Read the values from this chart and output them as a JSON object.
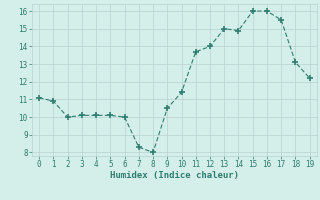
{
  "x": [
    0,
    1,
    2,
    3,
    4,
    5,
    6,
    7,
    8,
    9,
    10,
    11,
    12,
    13,
    14,
    15,
    16,
    17,
    18,
    19
  ],
  "y": [
    11.1,
    10.9,
    10.0,
    10.1,
    10.1,
    10.1,
    10.0,
    8.3,
    8.0,
    10.5,
    11.4,
    13.7,
    14.0,
    15.0,
    14.9,
    16.0,
    16.0,
    15.5,
    13.1,
    12.2
  ],
  "xlabel": "Humidex (Indice chaleur)",
  "ylim": [
    8,
    16
  ],
  "xlim": [
    -0.5,
    19.5
  ],
  "yticks": [
    8,
    9,
    10,
    11,
    12,
    13,
    14,
    15,
    16
  ],
  "xticks": [
    0,
    1,
    2,
    3,
    4,
    5,
    6,
    7,
    8,
    9,
    10,
    11,
    12,
    13,
    14,
    15,
    16,
    17,
    18,
    19
  ],
  "line_color": "#2e7d6e",
  "marker": "+",
  "bg_color": "#d4eeea",
  "grid_color": "#b8d4d0",
  "tick_color": "#2e7d6e",
  "label_color": "#2e7d6e",
  "tick_fontsize": 5.5,
  "xlabel_fontsize": 6.5
}
